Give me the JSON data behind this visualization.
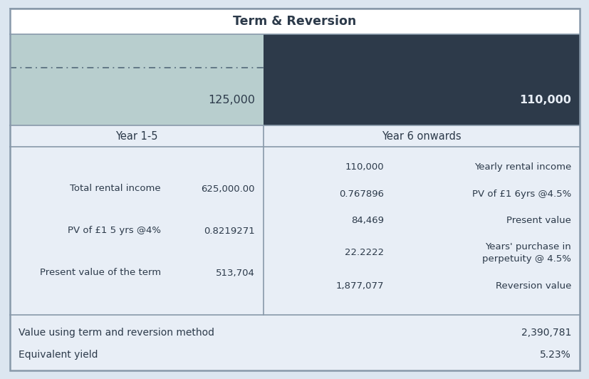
{
  "title": "Term & Reversion",
  "outer_bg": "#dce6f0",
  "section_bg": "#e8eef6",
  "content_bg": "#e8eef6",
  "white_bg": "#ffffff",
  "term_bar_color": "#b8cece",
  "reversion_bar_color": "#2d3a4a",
  "term_value": "125,000",
  "reversion_value": "110,000",
  "term_header": "Year 1-5",
  "reversion_header": "Year 6 onwards",
  "term_rows": [
    [
      "Total rental income",
      "625,000.00"
    ],
    [
      "PV of £1 5 yrs @4%",
      "0.8219271"
    ],
    [
      "Present value of the term",
      "513,704"
    ]
  ],
  "reversion_rows": [
    [
      "110,000",
      "Yearly rental income"
    ],
    [
      "0.767896",
      "PV of £1 6yrs @4.5%"
    ],
    [
      "84,469",
      "Present value"
    ],
    [
      "22.2222",
      "Years' purchase in\nperpetuity @ 4.5%"
    ],
    [
      "1,877,077",
      "Reversion value"
    ]
  ],
  "bottom_rows": [
    [
      "Value using term and reversion method",
      "2,390,781"
    ],
    [
      "Equivalent yield",
      "5.23%"
    ]
  ],
  "text_dark": "#2c3a4a",
  "text_light": "#e8eef6",
  "border_color": "#8899aa",
  "dash_color": "#5a7080",
  "col_split": 0.445,
  "fig_w": 8.28,
  "fig_h": 5.32,
  "dpi": 100
}
